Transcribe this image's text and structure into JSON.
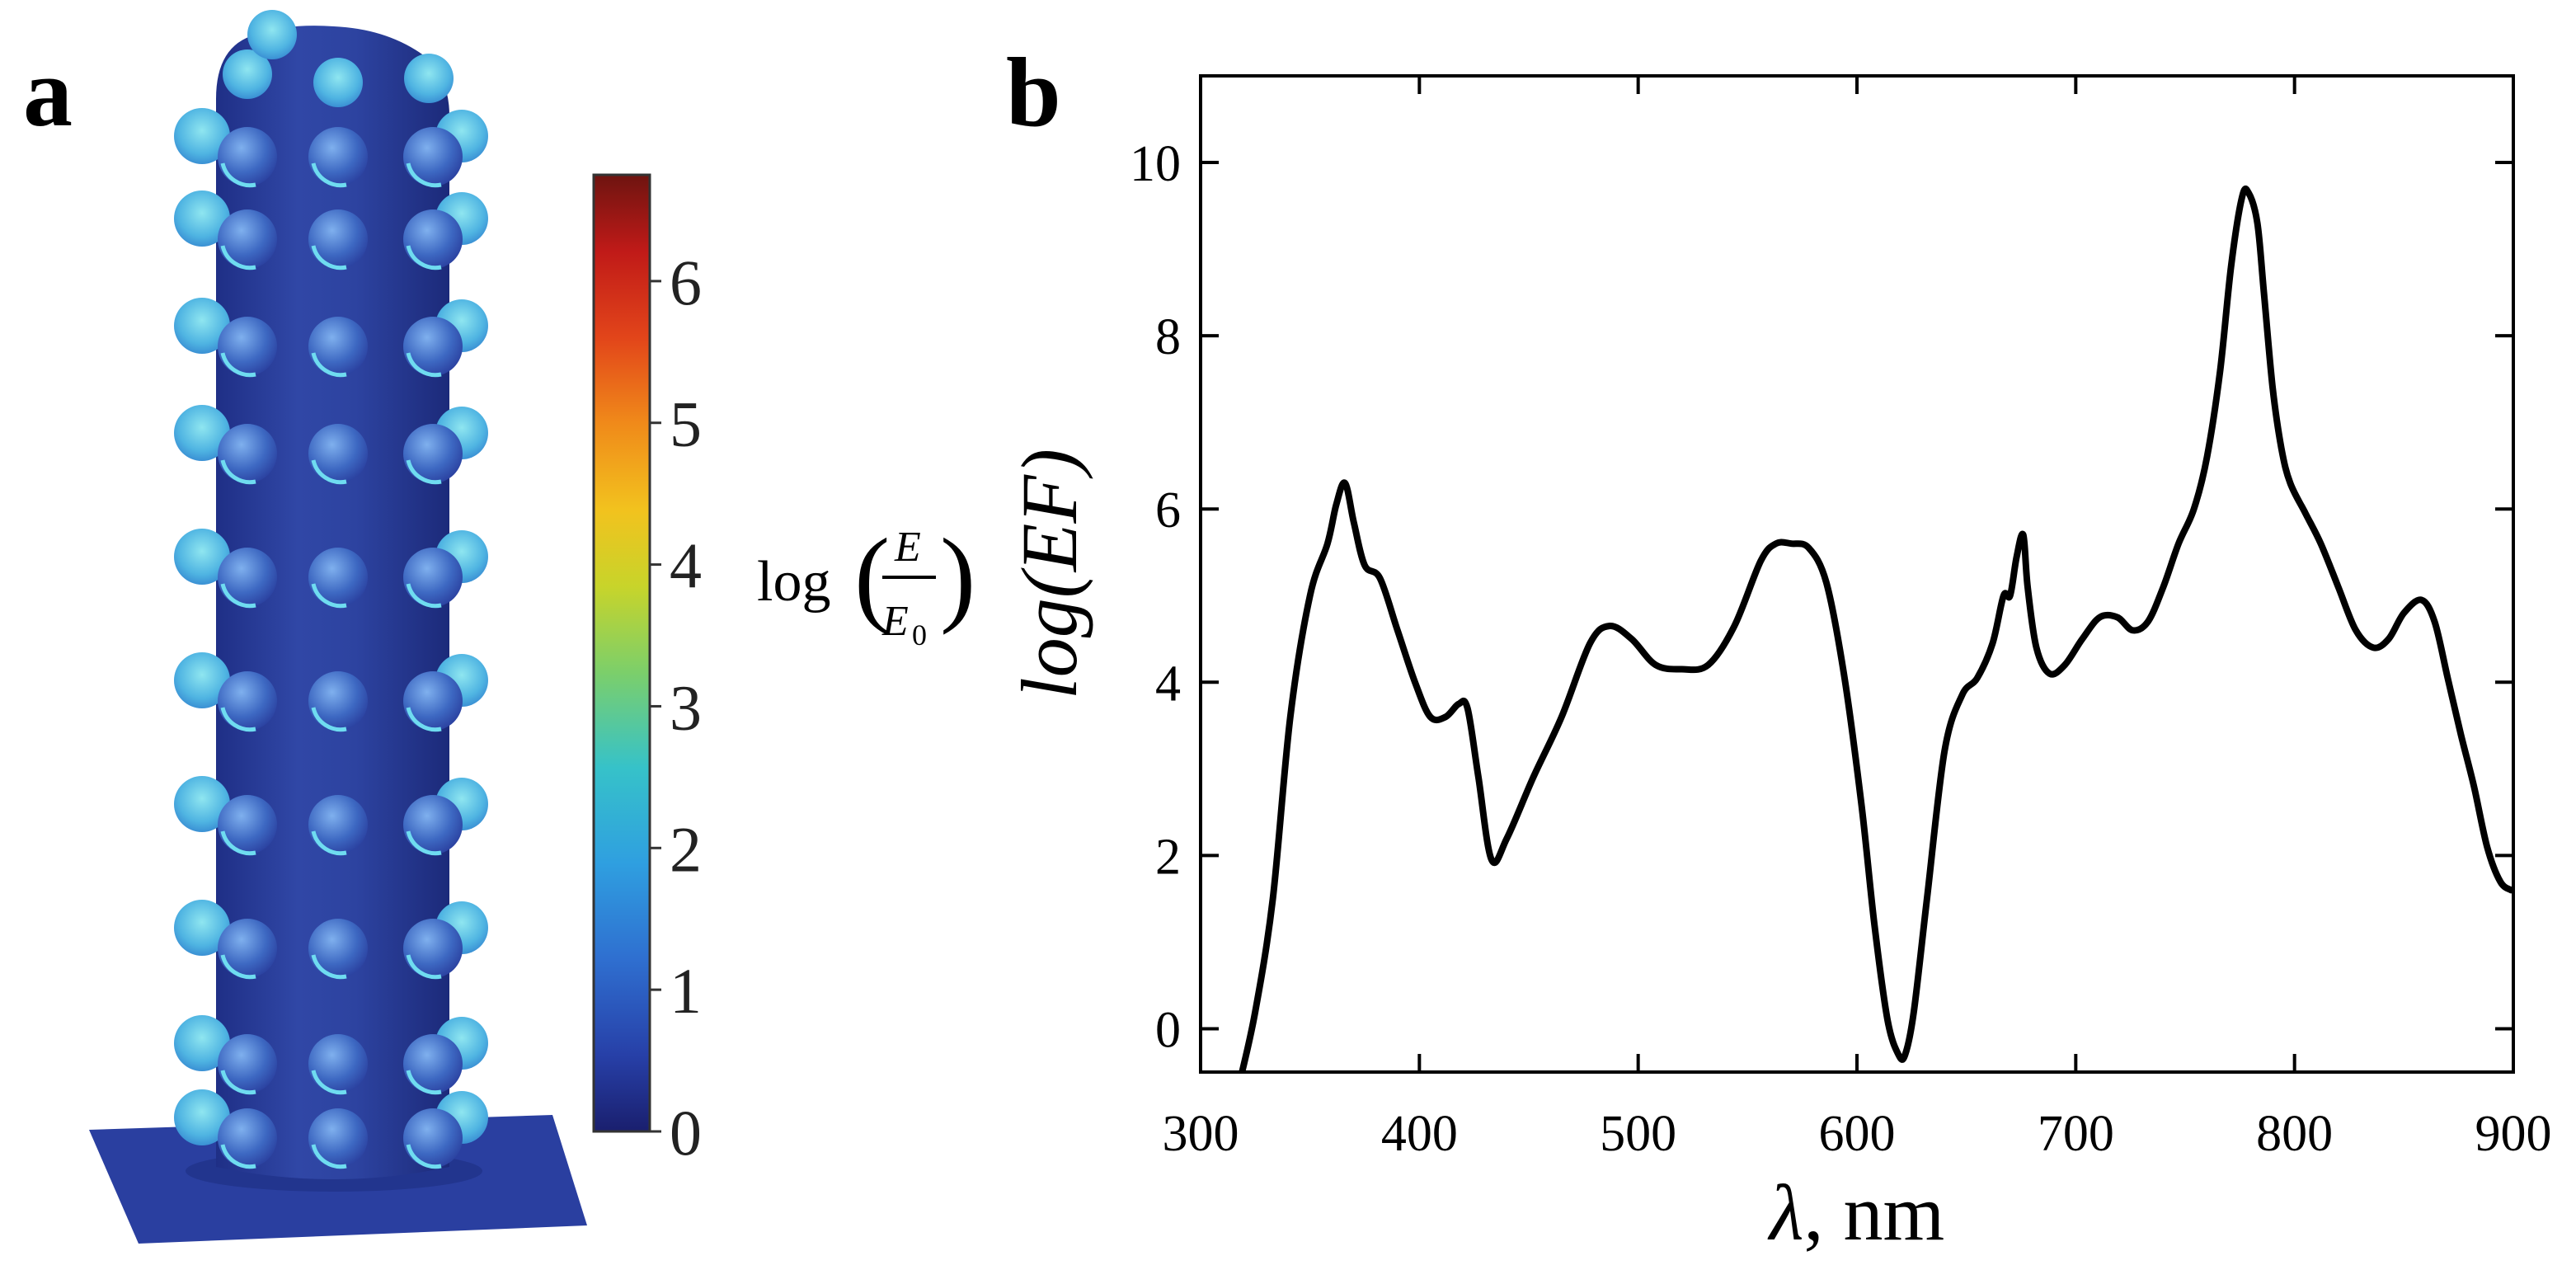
{
  "panels": {
    "a": "a",
    "b": "b"
  },
  "colorbar": {
    "ticks": [
      "0",
      "1",
      "2",
      "3",
      "4",
      "5",
      "6"
    ],
    "label_log": "log",
    "label_num": "E",
    "label_den": "E",
    "label_den_sub": "0"
  },
  "colors": {
    "line": "#000000",
    "nanowire": "#2a3f9e",
    "sphere": "#4f8fd6",
    "highlight": "#5ad0e8"
  },
  "chart_data": {
    "type": "line",
    "title": "",
    "xlabel_symbol": "λ",
    "xlabel_unit": ", nm",
    "ylabel": "log(EF)",
    "xlim": [
      300,
      900
    ],
    "ylim": [
      -0.5,
      11
    ],
    "xticks": [
      300,
      400,
      500,
      600,
      700,
      800,
      900
    ],
    "xtick_labels": [
      "300",
      "400",
      "500",
      "600",
      "700",
      "800",
      "900"
    ],
    "yticks": [
      0,
      2,
      4,
      6,
      8,
      10
    ],
    "ytick_labels": [
      "0",
      "2",
      "4",
      "6",
      "8",
      "10"
    ],
    "series": [
      {
        "name": "log(EF)",
        "x": [
          318,
          325,
          333,
          341,
          350,
          358,
          362,
          366,
          370,
          375,
          382,
          390,
          398,
          405,
          412,
          418,
          422,
          427,
          433,
          440,
          452,
          465,
          478,
          487,
          497,
          508,
          520,
          532,
          544,
          556,
          563,
          570,
          578,
          586,
          594,
          602,
          608,
          614,
          619,
          622,
          626,
          632,
          640,
          648,
          655,
          662,
          667,
          670,
          673,
          676,
          678,
          682,
          688,
          695,
          703,
          711,
          719,
          726,
          733,
          740,
          747,
          754,
          760,
          766,
          771,
          776,
          779,
          783,
          786,
          790,
          794,
          798,
          805,
          812,
          820,
          828,
          836,
          843,
          850,
          858,
          864,
          870,
          876,
          882,
          888,
          894,
          899
        ],
        "y": [
          -0.6,
          0.2,
          1.5,
          3.6,
          5.0,
          5.6,
          6.05,
          6.3,
          5.85,
          5.35,
          5.2,
          4.6,
          4.0,
          3.6,
          3.6,
          3.75,
          3.7,
          2.9,
          1.95,
          2.2,
          2.9,
          3.6,
          4.45,
          4.65,
          4.5,
          4.2,
          4.15,
          4.2,
          4.65,
          5.4,
          5.6,
          5.6,
          5.55,
          5.15,
          4.1,
          2.6,
          1.2,
          0.1,
          -0.3,
          -0.3,
          0.2,
          1.5,
          3.2,
          3.85,
          4.05,
          4.45,
          5.0,
          5.0,
          5.45,
          5.7,
          5.1,
          4.4,
          4.1,
          4.2,
          4.5,
          4.75,
          4.75,
          4.6,
          4.7,
          5.1,
          5.6,
          6.0,
          6.6,
          7.6,
          8.8,
          9.6,
          9.65,
          9.3,
          8.5,
          7.4,
          6.7,
          6.3,
          5.95,
          5.6,
          5.1,
          4.6,
          4.4,
          4.5,
          4.8,
          4.95,
          4.7,
          4.05,
          3.4,
          2.8,
          2.1,
          1.7,
          1.6
        ]
      }
    ]
  }
}
